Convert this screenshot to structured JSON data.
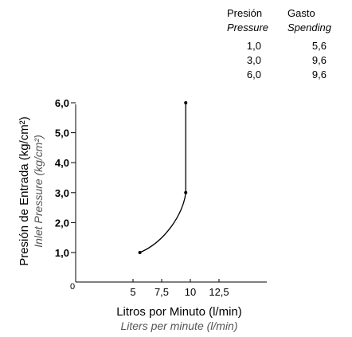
{
  "table": {
    "col1_header": "Presión",
    "col1_header_en": "Pressure",
    "col2_header": "Gasto",
    "col2_header_en": "Spending",
    "rows": [
      {
        "pressure": "1,0",
        "spending": "5,6"
      },
      {
        "pressure": "3,0",
        "spending": "9,6"
      },
      {
        "pressure": "6,0",
        "spending": "9,6"
      }
    ]
  },
  "chart_data": {
    "type": "line",
    "title": "",
    "xlabel": "Litros  por Minuto (l/min)",
    "xlabel_en": "Liters per minute (l/min)",
    "ylabel": "Presión de Entrada (kg/cm²)",
    "ylabel_en": "Inlet Pressure  (kg/cm²)",
    "xlim": [
      0,
      13.5
    ],
    "ylim": [
      0,
      6
    ],
    "x_ticks": [
      "0",
      "5",
      "7,5",
      "10",
      "12,5"
    ],
    "x_tick_values": [
      0,
      5,
      7.5,
      10,
      12.5
    ],
    "y_ticks": [
      "1,0",
      "2,0",
      "3,0",
      "4,0",
      "5,0",
      "6,0"
    ],
    "y_tick_values": [
      1,
      2,
      3,
      4,
      5,
      6
    ],
    "series": [
      {
        "points": [
          {
            "x": 5.6,
            "y": 1.0
          },
          {
            "x": 9.6,
            "y": 3.0
          },
          {
            "x": 9.6,
            "y": 6.0
          }
        ],
        "color": "#000000"
      }
    ],
    "grid": false,
    "legend": "none"
  }
}
